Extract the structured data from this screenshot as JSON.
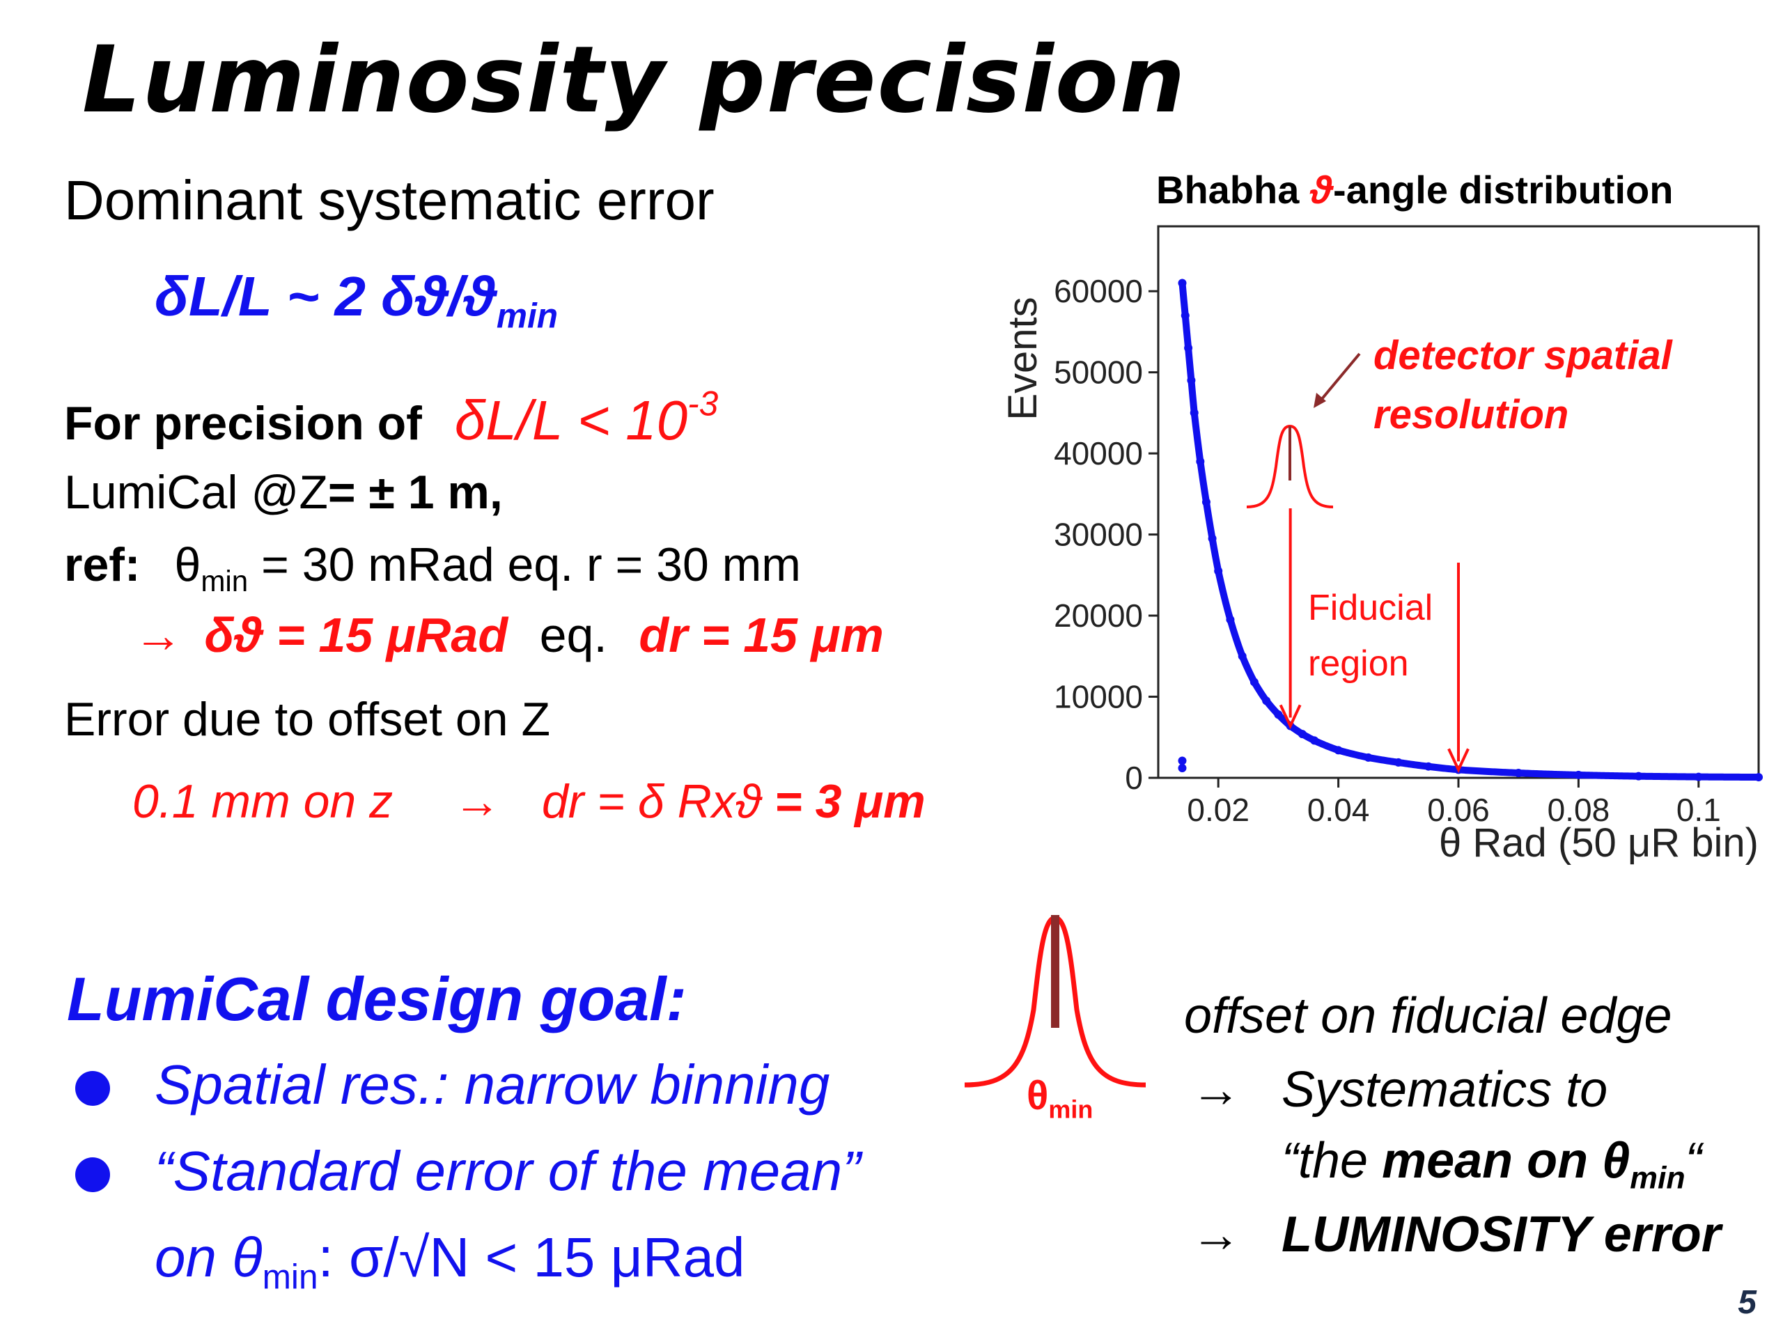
{
  "title": "Luminosity precision",
  "left": {
    "dominant_label": "Dominant systematic error",
    "formula_main": "δL/L ~ 2 δϑ/ϑ",
    "formula_sub": "min",
    "precision_label": "For precision of",
    "precision_value": "δL/L < 10",
    "precision_exp": "-3",
    "lumical_text": "LumiCal @Z",
    "lumical_value": "= ± 1 m,",
    "ref_label": "ref:",
    "ref_theta": "θ",
    "ref_sub": "min",
    "ref_rest": " = 30 mRad  eq.  r = 30 mm",
    "arrow": "→",
    "dtheta_value": "δϑ = 15 μRad",
    "eq_text": "eq.",
    "dr_value": "dr = 15 μm",
    "offset_label": "Error due to offset on Z",
    "offset_z": "0.1 mm on z",
    "offset_arrow": "→",
    "offset_dr": "dr = δ Rxϑ ",
    "offset_result": "= 3 μm"
  },
  "design": {
    "goal_title": "LumiCal  design goal:",
    "bullet1": "Spatial res.: narrow binning",
    "bullet2": "“Standard error of the mean”",
    "bullet3_prefix": "on θ",
    "bullet3_sub": "min",
    "bullet3_rest": ":   σ/√N < 15 μRad"
  },
  "gaussian_label": {
    "theta": "θ",
    "sub": "min"
  },
  "right_note": {
    "line1": "offset on fiducial edge",
    "arrow": "→",
    "line2": "Systematics to",
    "line3_prefix": "“the ",
    "line3_bold": "mean on θ",
    "line3_sub": "min",
    "line3_suffix": "“",
    "line4": "LUMINOSITY error"
  },
  "chart_data": {
    "type": "scatter",
    "title": "Bhabha ϑ-angle distribution",
    "title_prefix": "Bhabha ",
    "title_symbol": "ϑ",
    "title_suffix": "-angle distribution",
    "xlabel": "θ Rad (50 μR bin)",
    "ylabel": "Events",
    "xlim": [
      0.01,
      0.11
    ],
    "ylim": [
      0,
      68000
    ],
    "x_ticks": [
      "0.02",
      "0.04",
      "0.06",
      "0.08",
      "0.1"
    ],
    "y_ticks": [
      "0",
      "10000",
      "20000",
      "30000",
      "40000",
      "50000",
      "60000"
    ],
    "series": [
      {
        "color": "#1010ee",
        "x": [
          0.014,
          0.0145,
          0.015,
          0.0155,
          0.016,
          0.017,
          0.018,
          0.019,
          0.02,
          0.022,
          0.024,
          0.026,
          0.028,
          0.03,
          0.032,
          0.034,
          0.036,
          0.04,
          0.045,
          0.05,
          0.055,
          0.06,
          0.07,
          0.08,
          0.09,
          0.1,
          0.11
        ],
        "y": [
          61000,
          57000,
          53000,
          49000,
          45000,
          39000,
          34000,
          29500,
          25500,
          19500,
          15000,
          11800,
          9500,
          7800,
          6400,
          5400,
          4600,
          3400,
          2500,
          1900,
          1400,
          1000,
          600,
          350,
          200,
          120,
          80
        ]
      }
    ],
    "outlier_points": [
      {
        "x": 0.014,
        "y": 1200
      },
      {
        "x": 0.014,
        "y": 2100
      }
    ],
    "annotations": {
      "resolution": "detector spatial",
      "resolution2": "resolution",
      "fiducial": "Fiducial",
      "fiducial2": "region"
    },
    "fiducial_edges": [
      0.032,
      0.06
    ]
  },
  "colors": {
    "blue": "#1111ee",
    "red": "#ff1111",
    "gaussian_center": "#8b2a2a"
  },
  "page_number": "5"
}
